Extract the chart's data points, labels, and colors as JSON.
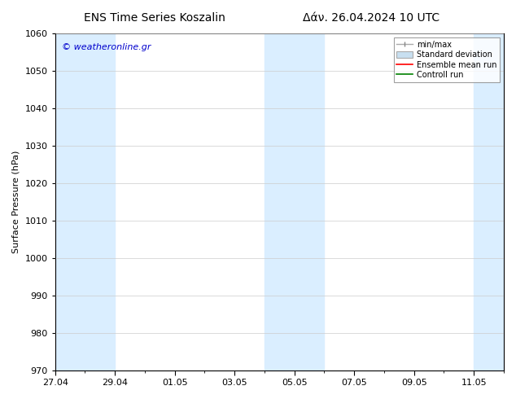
{
  "title_left": "ENS Time Series Koszalin",
  "title_right": "Δάν. 26.04.2024 10 UTC",
  "ylabel": "Surface Pressure (hPa)",
  "ylim": [
    970,
    1060
  ],
  "yticks": [
    970,
    980,
    990,
    1000,
    1010,
    1020,
    1030,
    1040,
    1050,
    1060
  ],
  "watermark": "© weatheronline.gr",
  "watermark_color": "#0000cc",
  "shade_color": "#daeeff",
  "bg_color": "#ffffff",
  "plot_bg_color": "#ffffff",
  "grid_color": "#cccccc",
  "tick_label_fontsize": 8,
  "axis_label_fontsize": 8,
  "title_fontsize": 10,
  "watermark_fontsize": 8,
  "xtick_labels": [
    "27.04",
    "29.04",
    "01.05",
    "03.05",
    "05.05",
    "07.05",
    "09.05",
    "11.05"
  ],
  "xtick_days": [
    0,
    2,
    4,
    6,
    8,
    10,
    12,
    14
  ],
  "total_days": 15,
  "shade_ranges_days": [
    [
      0,
      1
    ],
    [
      1,
      2
    ],
    [
      7,
      8
    ],
    [
      8,
      9
    ],
    [
      14,
      15
    ]
  ]
}
